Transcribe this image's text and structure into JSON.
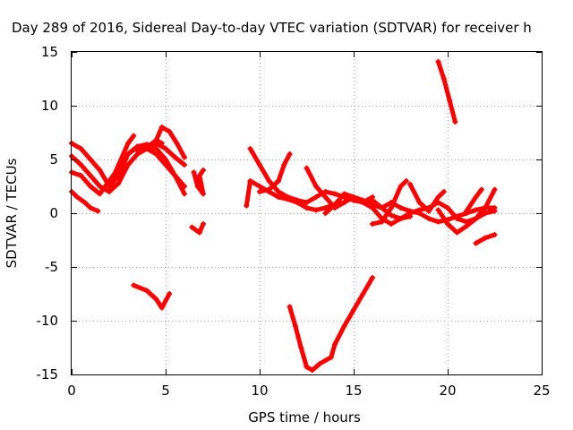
{
  "chart_data": {
    "type": "scatter",
    "title": "Day 289 of 2016, Sidereal Day-to-day VTEC variation (SDTVAR) for receiver h",
    "xlabel": "GPS time / hours",
    "ylabel": "SDTVAR / TECUs",
    "xlim": [
      0,
      25
    ],
    "ylim": [
      -15,
      15
    ],
    "xticks": [
      "0",
      "5",
      "10",
      "15",
      "20",
      "25"
    ],
    "yticks": [
      "15",
      "10",
      "5",
      "0",
      "-5",
      "-10",
      "-15"
    ],
    "grid": true,
    "marker": "+",
    "color": "#ff0000",
    "series": [
      {
        "points": [
          [
            0.0,
            6.5
          ],
          [
            0.5,
            6.0
          ],
          [
            1.0,
            5.0
          ],
          [
            1.5,
            4.0
          ],
          [
            2.0,
            2.5
          ],
          [
            2.5,
            3.5
          ],
          [
            3.0,
            5.5
          ],
          [
            3.5,
            6.2
          ],
          [
            4.0,
            6.3
          ],
          [
            4.5,
            6.5
          ],
          [
            5.0,
            6.0
          ],
          [
            5.5,
            5.2
          ],
          [
            6.0,
            4.5
          ]
        ]
      },
      {
        "points": [
          [
            0.0,
            5.3
          ],
          [
            0.5,
            4.5
          ],
          [
            1.0,
            3.5
          ],
          [
            1.5,
            2.5
          ],
          [
            2.0,
            2.0
          ],
          [
            2.5,
            2.8
          ],
          [
            3.0,
            4.5
          ],
          [
            3.5,
            5.5
          ],
          [
            4.0,
            6.0
          ],
          [
            4.5,
            5.5
          ],
          [
            5.0,
            4.5
          ],
          [
            5.5,
            3.5
          ],
          [
            6.0,
            2.5
          ]
        ]
      },
      {
        "points": [
          [
            0.0,
            3.8
          ],
          [
            0.5,
            3.5
          ],
          [
            1.0,
            2.5
          ],
          [
            1.5,
            1.8
          ],
          [
            2.0,
            3.0
          ],
          [
            2.5,
            4.2
          ],
          [
            3.0,
            5.5
          ],
          [
            3.5,
            6.2
          ],
          [
            4.0,
            6.4
          ],
          [
            4.5,
            6.0
          ],
          [
            5.0,
            5.0
          ],
          [
            5.5,
            3.5
          ],
          [
            6.0,
            1.8
          ]
        ]
      },
      {
        "points": [
          [
            0.0,
            2.0
          ],
          [
            0.3,
            1.5
          ],
          [
            0.7,
            1.0
          ],
          [
            1.0,
            0.5
          ],
          [
            1.4,
            0.2
          ]
        ]
      },
      {
        "points": [
          [
            2.0,
            2.5
          ],
          [
            2.5,
            4.5
          ],
          [
            3.0,
            6.5
          ],
          [
            3.3,
            7.2
          ]
        ]
      },
      {
        "points": [
          [
            3.5,
            5.8
          ],
          [
            4.0,
            6.1
          ],
          [
            4.5,
            6.8
          ],
          [
            4.8,
            6.5
          ]
        ]
      },
      {
        "points": [
          [
            4.3,
            6.0
          ],
          [
            4.8,
            8.0
          ],
          [
            5.2,
            7.6
          ],
          [
            5.6,
            6.5
          ],
          [
            6.0,
            5.2
          ]
        ]
      },
      {
        "points": [
          [
            6.5,
            3.8
          ],
          [
            6.7,
            2.5
          ],
          [
            7.0,
            1.8
          ],
          [
            6.8,
            3.5
          ],
          [
            7.0,
            4.0
          ]
        ]
      },
      {
        "points": [
          [
            6.4,
            -1.3
          ],
          [
            6.8,
            -1.8
          ],
          [
            7.0,
            -1.0
          ]
        ]
      },
      {
        "points": [
          [
            3.3,
            -6.7
          ],
          [
            4.0,
            -7.2
          ],
          [
            4.5,
            -8.0
          ],
          [
            4.8,
            -8.8
          ],
          [
            5.2,
            -7.5
          ]
        ]
      },
      {
        "points": [
          [
            9.3,
            0.7
          ],
          [
            9.5,
            3.0
          ],
          [
            10.0,
            2.5
          ],
          [
            10.5,
            2.0
          ],
          [
            11.0,
            1.5
          ],
          [
            11.5,
            1.3
          ],
          [
            12.0,
            1.0
          ],
          [
            12.5,
            0.5
          ],
          [
            13.0,
            0.3
          ],
          [
            13.5,
            0.5
          ],
          [
            14.0,
            0.8
          ],
          [
            14.5,
            1.0
          ]
        ]
      },
      {
        "points": [
          [
            9.5,
            6.0
          ],
          [
            10.0,
            4.5
          ],
          [
            10.5,
            3.0
          ],
          [
            11.0,
            2.0
          ],
          [
            11.5,
            1.5
          ],
          [
            12.0,
            1.2
          ],
          [
            12.5,
            1.0
          ],
          [
            13.0,
            1.5
          ],
          [
            13.5,
            2.0
          ],
          [
            14.0,
            1.8
          ],
          [
            14.5,
            1.5
          ],
          [
            15.0,
            1.2
          ],
          [
            15.5,
            1.0
          ],
          [
            16.0,
            1.5
          ]
        ]
      },
      {
        "points": [
          [
            10.0,
            2.0
          ],
          [
            10.5,
            2.2
          ],
          [
            11.0,
            3.0
          ],
          [
            11.3,
            4.5
          ],
          [
            11.6,
            5.5
          ]
        ]
      },
      {
        "points": [
          [
            12.5,
            4.2
          ],
          [
            13.0,
            2.5
          ],
          [
            13.5,
            1.5
          ],
          [
            14.0,
            0.5
          ],
          [
            14.5,
            1.0
          ],
          [
            15.0,
            1.5
          ],
          [
            15.5,
            1.2
          ],
          [
            16.0,
            0.8
          ],
          [
            16.5,
            0.5
          ],
          [
            17.0,
            1.0
          ],
          [
            17.5,
            0.5
          ],
          [
            18.0,
            0.2
          ],
          [
            18.5,
            0.0
          ],
          [
            19.0,
            -0.5
          ],
          [
            19.5,
            -0.8
          ],
          [
            20.0,
            -0.6
          ],
          [
            20.5,
            -0.3
          ],
          [
            21.0,
            0.0
          ],
          [
            21.5,
            0.3
          ],
          [
            22.0,
            0.5
          ],
          [
            22.5,
            0.5
          ]
        ]
      },
      {
        "points": [
          [
            13.5,
            0.0
          ],
          [
            14.0,
            0.8
          ],
          [
            14.5,
            1.8
          ],
          [
            15.0,
            1.5
          ],
          [
            15.5,
            1.0
          ],
          [
            16.0,
            0.5
          ],
          [
            16.5,
            -0.5
          ],
          [
            17.0,
            -1.0
          ],
          [
            17.5,
            -0.5
          ],
          [
            18.0,
            0.0
          ],
          [
            18.5,
            0.3
          ],
          [
            19.0,
            0.5
          ],
          [
            19.5,
            1.0
          ],
          [
            20.0,
            0.5
          ],
          [
            20.5,
            -0.5
          ],
          [
            21.0,
            -0.8
          ],
          [
            21.5,
            -0.5
          ],
          [
            22.0,
            0.0
          ],
          [
            22.5,
            0.2
          ]
        ]
      },
      {
        "points": [
          [
            16.0,
            -1.0
          ],
          [
            16.5,
            -0.8
          ],
          [
            17.0,
            0.5
          ],
          [
            17.5,
            2.5
          ],
          [
            17.8,
            3.0
          ]
        ]
      },
      {
        "points": [
          [
            16.0,
            1.2
          ],
          [
            16.5,
            0.5
          ],
          [
            17.0,
            -0.2
          ],
          [
            17.5,
            -0.5
          ],
          [
            18.0,
            -0.3
          ]
        ]
      },
      {
        "points": [
          [
            18.0,
            2.7
          ],
          [
            18.5,
            1.0
          ],
          [
            19.0,
            0.2
          ],
          [
            19.5,
            1.5
          ],
          [
            19.8,
            2.0
          ]
        ]
      },
      {
        "points": [
          [
            19.5,
            0.3
          ],
          [
            20.0,
            -1.0
          ],
          [
            20.5,
            -1.8
          ],
          [
            21.0,
            -1.2
          ],
          [
            21.5,
            -0.5
          ],
          [
            22.0,
            0.5
          ],
          [
            22.5,
            2.2
          ]
        ]
      },
      {
        "points": [
          [
            21.0,
            0.2
          ],
          [
            21.5,
            1.5
          ],
          [
            21.8,
            2.2
          ]
        ]
      },
      {
        "points": [
          [
            21.5,
            -2.8
          ],
          [
            22.0,
            -2.3
          ],
          [
            22.5,
            -2.0
          ]
        ]
      },
      {
        "points": [
          [
            19.5,
            14.1
          ],
          [
            19.8,
            12.5
          ],
          [
            20.1,
            10.5
          ],
          [
            20.4,
            8.5
          ]
        ]
      },
      {
        "points": [
          [
            11.6,
            -8.7
          ],
          [
            11.9,
            -10.5
          ],
          [
            12.2,
            -12.5
          ],
          [
            12.5,
            -14.3
          ],
          [
            12.8,
            -14.6
          ],
          [
            13.2,
            -14.0
          ],
          [
            13.8,
            -13.4
          ],
          [
            14.0,
            -12.2
          ],
          [
            14.5,
            -10.5
          ],
          [
            15.0,
            -9.0
          ],
          [
            15.5,
            -7.5
          ],
          [
            16.0,
            -6.0
          ]
        ]
      }
    ]
  }
}
